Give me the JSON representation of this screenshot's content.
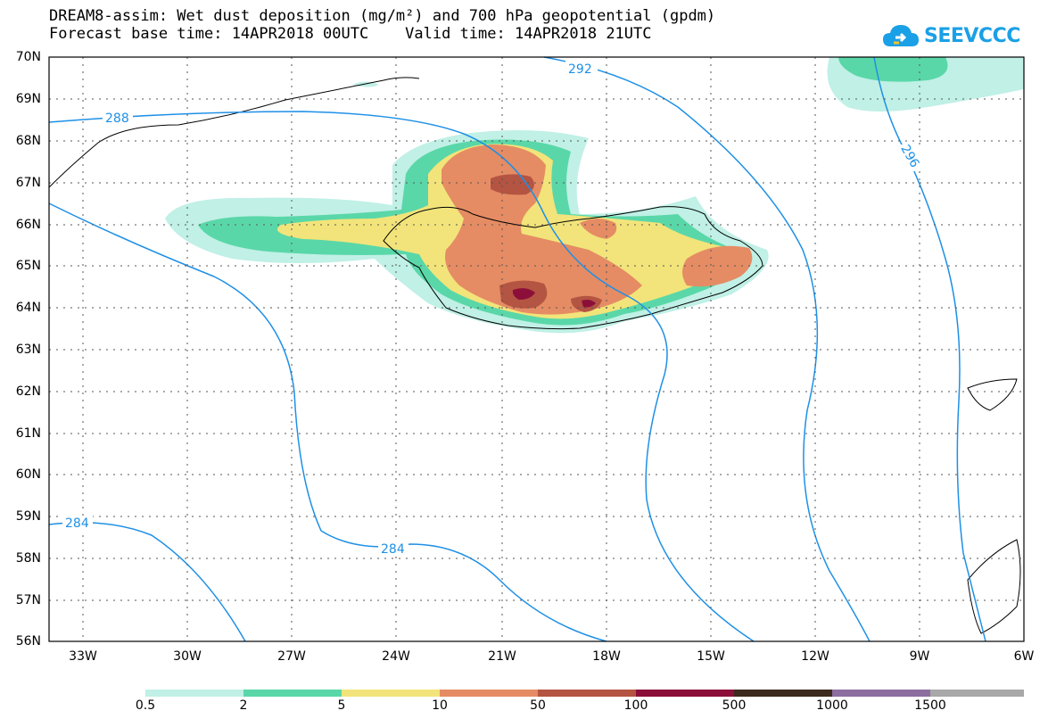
{
  "title": {
    "line1": "DREAM8-assim: Wet dust deposition (mg/m²) and 700 hPa geopotential (gpdm)",
    "line2": "Forecast base time: 14APR2018 00UTC    Valid time: 14APR2018 21UTC"
  },
  "logo": {
    "text": "SEEVCCC",
    "icon": "cloud-icon"
  },
  "map": {
    "lat_labels": [
      "70N",
      "69N",
      "68N",
      "67N",
      "66N",
      "65N",
      "64N",
      "63N",
      "62N",
      "61N",
      "60N",
      "59N",
      "58N",
      "57N",
      "56N"
    ],
    "lon_labels": [
      "33W",
      "30W",
      "27W",
      "24W",
      "21W",
      "18W",
      "15W",
      "12W",
      "9W",
      "6W"
    ],
    "contour_labels": [
      "288",
      "292",
      "296",
      "284",
      "284"
    ],
    "contour_color": "#1e90e6"
  },
  "colorbar": {
    "labels": [
      "0.5",
      "2",
      "5",
      "10",
      "50",
      "100",
      "500",
      "1000",
      "1500"
    ],
    "colors": [
      "#c0f0e6",
      "#5ad7a8",
      "#f2e47a",
      "#e58c64",
      "#b45442",
      "#8c0f3a",
      "#3c2a1e",
      "#8c6ea0",
      "#a8a8a8"
    ]
  }
}
